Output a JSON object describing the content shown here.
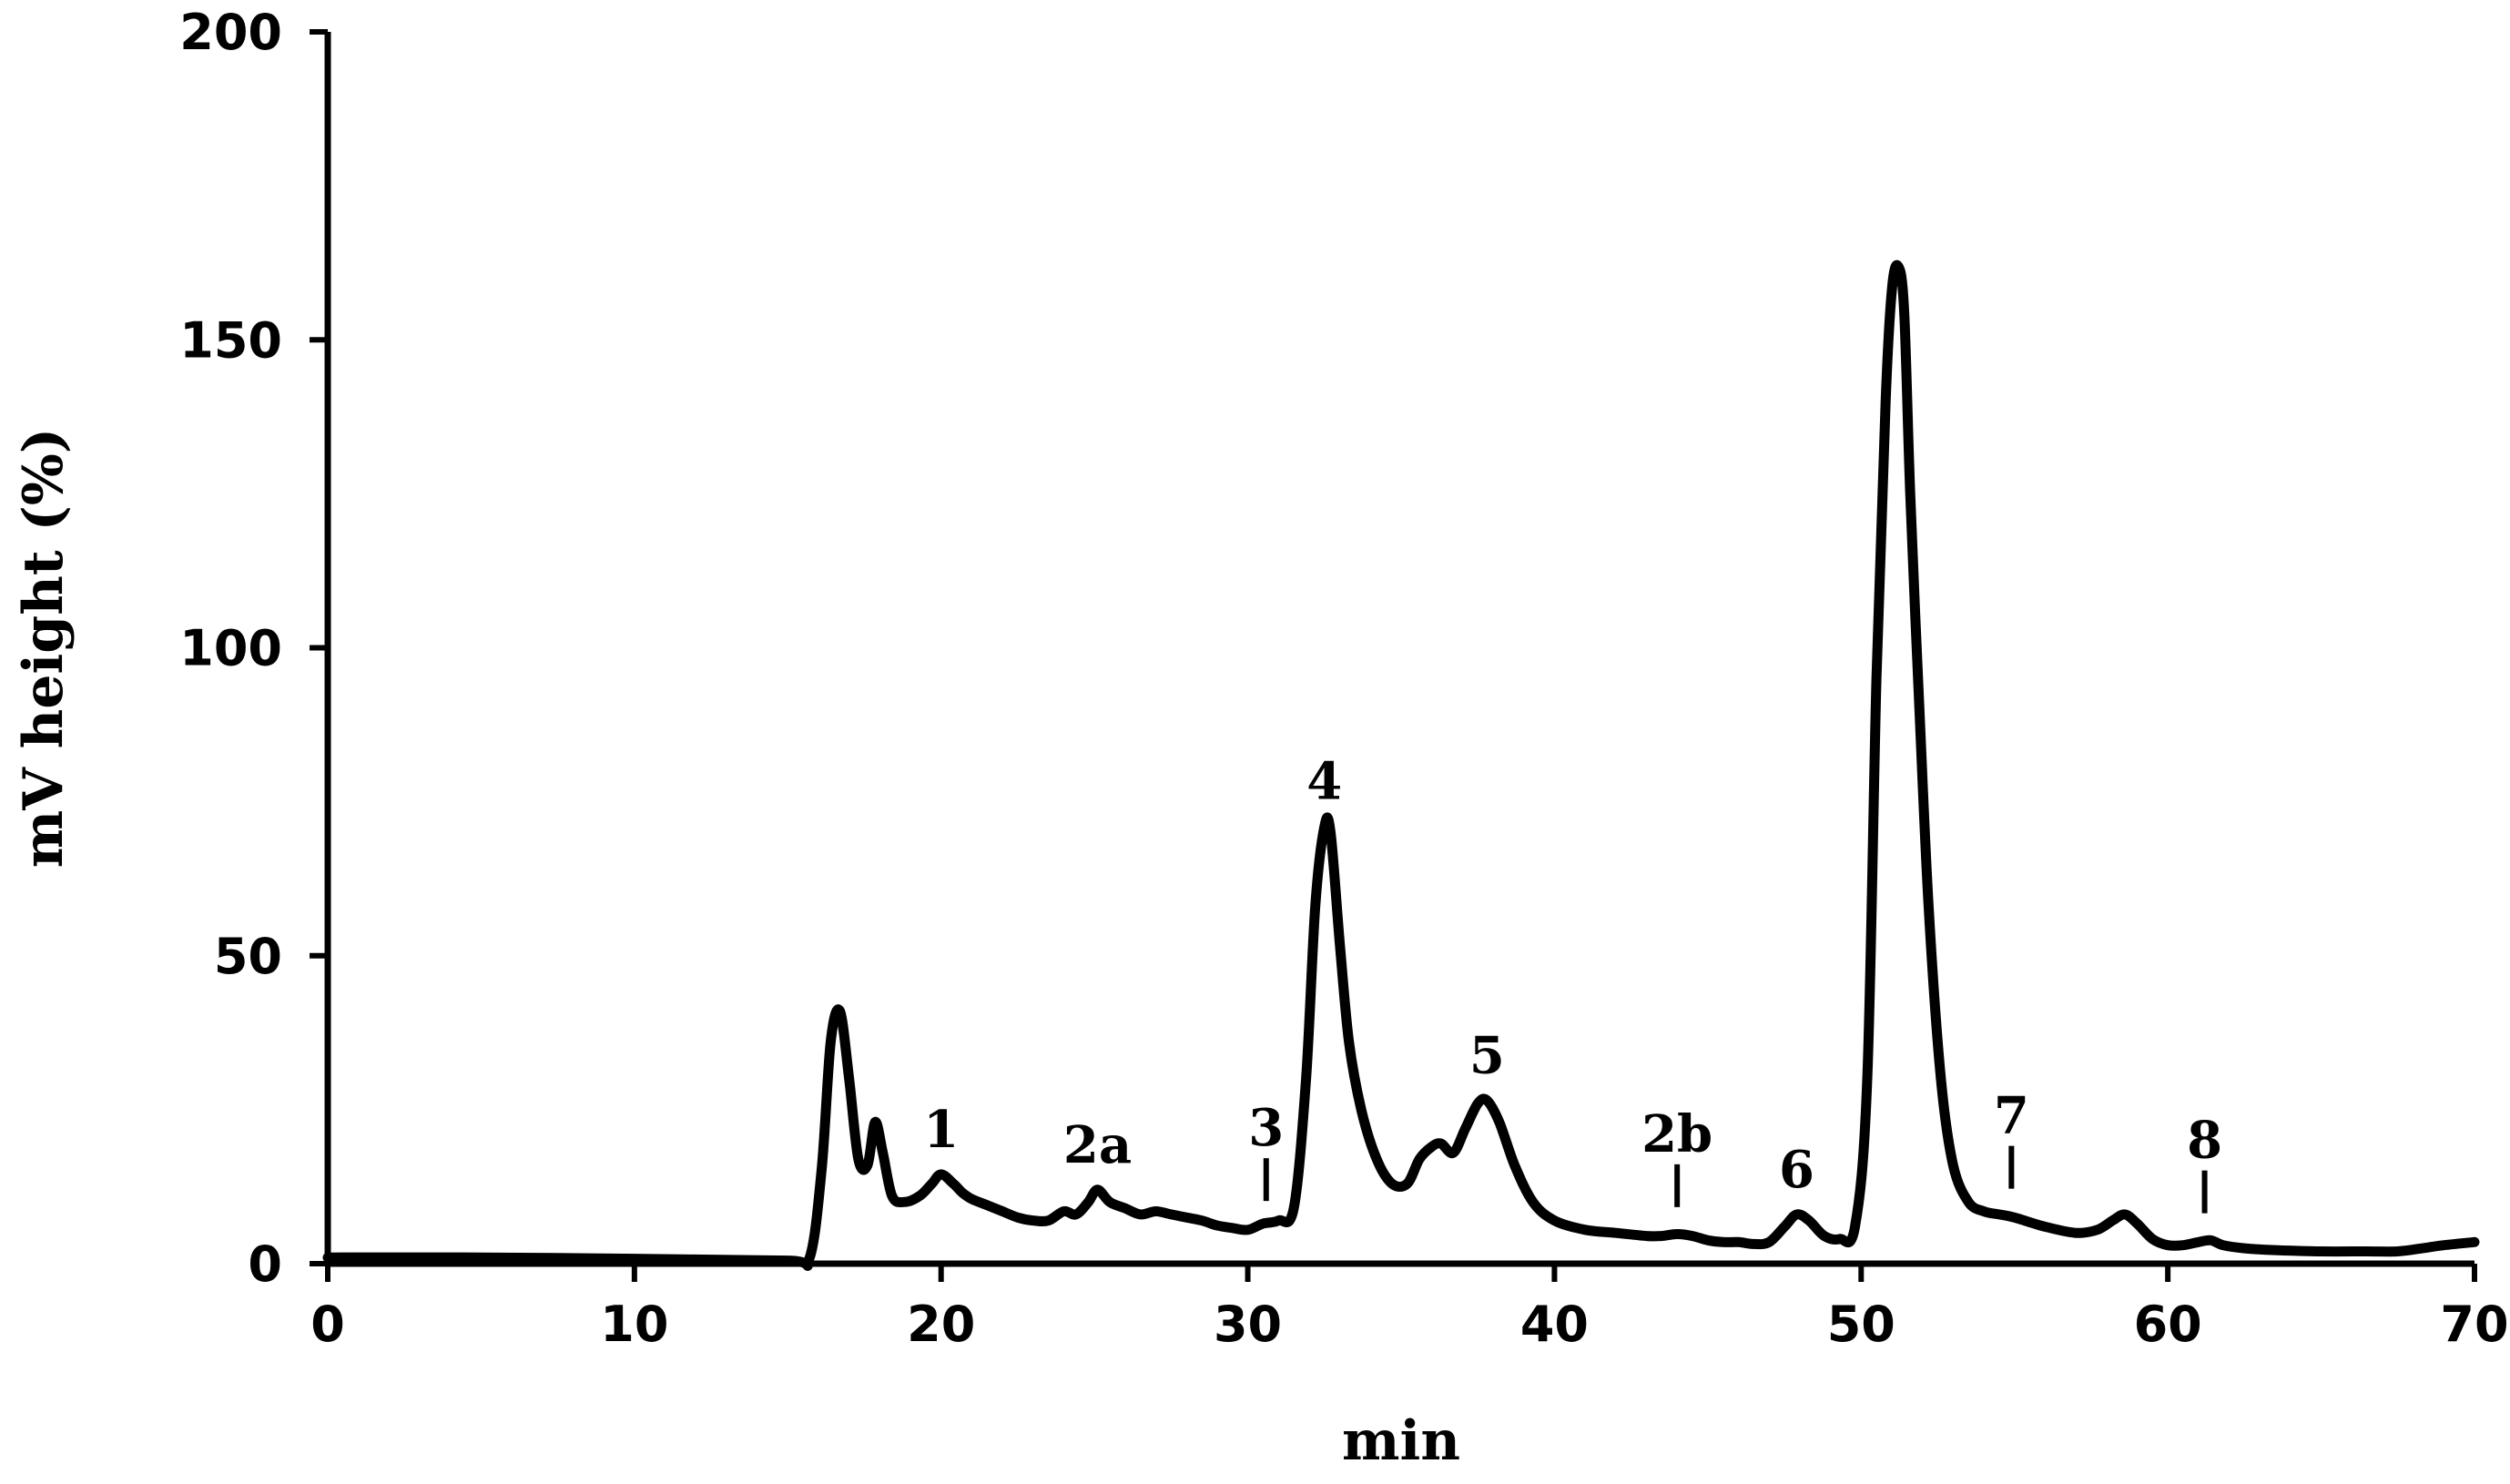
{
  "chart_data": {
    "type": "line",
    "title": "",
    "xlabel": "min",
    "ylabel": "mV height (%)",
    "xlim": [
      0,
      70
    ],
    "ylim": [
      0,
      200
    ],
    "xticks": [
      0,
      10,
      20,
      30,
      40,
      50,
      60,
      70
    ],
    "yticks": [
      0,
      50,
      100,
      150,
      200
    ],
    "grid": false,
    "series": [
      {
        "x": [
          0,
          5,
          10,
          15,
          15.7,
          16.1,
          16.4,
          16.7,
          17.0,
          17.3,
          17.6,
          17.85,
          18.1,
          18.4,
          18.8,
          19.3,
          19.7,
          20.0,
          20.4,
          20.7,
          21.0,
          21.5,
          22.0,
          22.5,
          23.0,
          23.5,
          24.0,
          24.4,
          24.8,
          25.1,
          25.5,
          26.0,
          26.5,
          27.0,
          27.5,
          28.0,
          28.5,
          29.0,
          29.5,
          30.0,
          30.5,
          31.0,
          31.5,
          31.9,
          32.2,
          32.5,
          32.7,
          33.0,
          33.3,
          33.7,
          34.2,
          34.7,
          35.2,
          35.6,
          36.0,
          36.3,
          36.7,
          37.1,
          37.5,
          37.8,
          38.2,
          38.7,
          39.3,
          40.0,
          41.0,
          42.0,
          43.0,
          43.5,
          44.0,
          44.5,
          45.0,
          45.5,
          46.0,
          46.5,
          47.0,
          47.5,
          47.9,
          48.3,
          48.8,
          49.3,
          49.8,
          50.2,
          50.5,
          50.8,
          51.0,
          51.2,
          51.4,
          51.6,
          51.9,
          52.2,
          52.6,
          53.0,
          53.5,
          54.0,
          54.5,
          55.0,
          56.0,
          57.0,
          57.7,
          58.2,
          58.6,
          59.0,
          59.5,
          60.0,
          60.5,
          61.0,
          61.4,
          61.8,
          62.5,
          63.5,
          65.0,
          66.5,
          67.5,
          68.3,
          69.0,
          70.0
        ],
        "y": [
          1,
          1,
          0.8,
          0.5,
          0.8,
          15,
          36,
          41,
          30,
          17,
          16,
          23,
          18,
          11,
          10,
          11,
          13,
          14.5,
          13,
          11.5,
          10.5,
          9.5,
          8.5,
          7.5,
          7,
          7,
          8.5,
          8,
          10,
          12,
          10,
          9,
          8,
          8.5,
          8,
          7.5,
          7,
          6.2,
          5.8,
          5.5,
          6.5,
          7,
          9,
          30,
          58,
          71,
          70,
          52,
          36,
          25,
          17,
          13,
          13,
          17,
          19,
          19.5,
          18,
          22,
          26,
          26.5,
          23,
          16,
          10,
          7,
          5.5,
          5,
          4.5,
          4.5,
          4.8,
          4.5,
          3.8,
          3.5,
          3.5,
          3.2,
          3.5,
          6,
          8,
          7,
          4.5,
          4,
          6,
          30,
          95,
          140,
          158,
          162,
          155,
          125,
          90,
          58,
          30,
          16,
          10,
          8.5,
          8,
          7.5,
          6,
          5,
          5.5,
          7,
          8,
          6.5,
          4,
          3,
          3,
          3.5,
          3.8,
          3,
          2.5,
          2.2,
          2,
          2,
          2,
          2.5,
          3,
          3.5
        ]
      }
    ],
    "peak_labels": [
      {
        "text": "1",
        "x": 20.0,
        "y": 14.5,
        "marker": false
      },
      {
        "text": "2a",
        "x": 25.1,
        "y": 12,
        "marker": false
      },
      {
        "text": "3",
        "x": 30.6,
        "y": 9,
        "marker": true
      },
      {
        "text": "4",
        "x": 32.5,
        "y": 71,
        "marker": false
      },
      {
        "text": "5",
        "x": 37.8,
        "y": 26.5,
        "marker": false
      },
      {
        "text": "2b",
        "x": 44.0,
        "y": 8,
        "marker": true
      },
      {
        "text": "6",
        "x": 47.9,
        "y": 8,
        "marker": false
      },
      {
        "text": "7",
        "x": 54.9,
        "y": 11,
        "marker": true
      },
      {
        "text": "8",
        "x": 61.2,
        "y": 7,
        "marker": true
      }
    ]
  }
}
